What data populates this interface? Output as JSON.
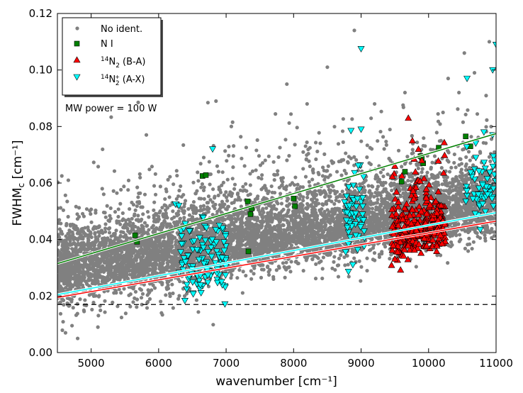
{
  "chart_data": {
    "type": "scatter",
    "xlabel": "wavenumber [cm⁻¹]",
    "ylabel": "FWHM",
    "ylabel_sub": "c",
    "ylabel_unit": " [cm⁻¹]",
    "xlim": [
      4500,
      11000
    ],
    "ylim": [
      0.0,
      0.12
    ],
    "xticks": [
      5000,
      6000,
      7000,
      8000,
      9000,
      10000,
      11000
    ],
    "yticks": [
      0.0,
      0.02,
      0.04,
      0.06,
      0.08,
      0.1,
      0.12
    ],
    "xtick_labels": [
      "5000",
      "6000",
      "7000",
      "8000",
      "9000",
      "10000",
      "11000"
    ],
    "ytick_labels": [
      "0.00",
      "0.02",
      "0.04",
      "0.06",
      "0.08",
      "0.10",
      "0.12"
    ],
    "grid": false,
    "legend_position": "top-left",
    "annotation": "MW power = 100 W",
    "legend": [
      {
        "key": "noident",
        "label": "No ident.",
        "marker": "circle",
        "color": "#808080"
      },
      {
        "key": "ni",
        "label": "N I",
        "marker": "square",
        "color": "#008000"
      },
      {
        "key": "n2ba",
        "label_pre": "14",
        "label_main": "N",
        "label_sub": "2",
        "label_post": " (B-A)",
        "marker": "triangle-up",
        "color": "#ff0000"
      },
      {
        "key": "n2plus",
        "label_pre": "14",
        "label_main": "N",
        "label_sub": "2",
        "label_sup": "+",
        "label_post": " (A-X)",
        "marker": "triangle-down",
        "color": "#00ffff"
      }
    ],
    "series": [
      {
        "key": "noident",
        "marker": "circle",
        "color": "#808080",
        "clusters": [
          {
            "x": [
              4500,
              11000
            ],
            "trend": [
              0.032,
              0.056
            ],
            "spread": 0.007,
            "n": 3800
          },
          {
            "x": [
              4500,
              11000
            ],
            "trend": [
              0.028,
              0.05
            ],
            "spread": 0.004,
            "n": 2600
          },
          {
            "x": [
              4500,
              11000
            ],
            "trend": [
              0.04,
              0.07
            ],
            "spread": 0.012,
            "n": 700
          },
          {
            "x": [
              4500,
              6500
            ],
            "trend": [
              0.018,
              0.026
            ],
            "spread": 0.004,
            "n": 120
          }
        ],
        "outliers": [
          {
            "x": 8500,
            "y": 0.101
          },
          {
            "x": 8900,
            "y": 0.114
          },
          {
            "x": 10680,
            "y": 0.099
          },
          {
            "x": 10530,
            "y": 0.106
          },
          {
            "x": 9650,
            "y": 0.092
          },
          {
            "x": 7900,
            "y": 0.095
          },
          {
            "x": 6850,
            "y": 0.089
          },
          {
            "x": 10290,
            "y": 0.097
          },
          {
            "x": 10900,
            "y": 0.11
          },
          {
            "x": 9200,
            "y": 0.088
          },
          {
            "x": 10450,
            "y": 0.092
          },
          {
            "x": 8200,
            "y": 0.088
          },
          {
            "x": 4800,
            "y": 0.005
          },
          {
            "x": 4620,
            "y": 0.007
          },
          {
            "x": 5100,
            "y": 0.009
          }
        ]
      },
      {
        "key": "ni",
        "marker": "square",
        "color": "#008000",
        "points": [
          [
            5650,
            0.0415
          ],
          [
            5680,
            0.0392
          ],
          [
            6650,
            0.0625
          ],
          [
            6700,
            0.0628
          ],
          [
            7320,
            0.0535
          ],
          [
            7360,
            0.049
          ],
          [
            7380,
            0.051
          ],
          [
            7330,
            0.0358
          ],
          [
            8000,
            0.0545
          ],
          [
            8020,
            0.0518
          ],
          [
            9600,
            0.0605
          ],
          [
            9650,
            0.064
          ],
          [
            9880,
            0.0695
          ],
          [
            9900,
            0.069
          ],
          [
            9920,
            0.067
          ],
          [
            10150,
            0.0725
          ],
          [
            10550,
            0.0765
          ],
          [
            10620,
            0.073
          ]
        ]
      },
      {
        "key": "n2ba",
        "marker": "triangle-up",
        "color": "#ff0000",
        "clusters": [
          {
            "x": [
              9450,
              10250
            ],
            "trend": [
              0.04,
              0.046
            ],
            "spread": 0.004,
            "n": 220
          },
          {
            "x": [
              9450,
              10250
            ],
            "trend": [
              0.048,
              0.056
            ],
            "spread": 0.008,
            "n": 90
          }
        ],
        "extra": [
          [
            9700,
            0.083
          ],
          [
            9760,
            0.075
          ],
          [
            9850,
            0.072
          ],
          [
            9500,
            0.066
          ],
          [
            9900,
            0.068
          ]
        ]
      },
      {
        "key": "n2plus",
        "marker": "triangle-down",
        "color": "#00ffff",
        "clusters": [
          {
            "x": [
              6300,
              7000
            ],
            "trend": [
              0.031,
              0.034
            ],
            "spread": 0.006,
            "n": 110
          },
          {
            "x": [
              8750,
              9050
            ],
            "trend": [
              0.046,
              0.048
            ],
            "spread": 0.008,
            "n": 55
          },
          {
            "x": [
              10550,
              11000
            ],
            "trend": [
              0.056,
              0.06
            ],
            "spread": 0.006,
            "n": 55
          }
        ],
        "extra": [
          [
            6250,
            0.0525
          ],
          [
            6300,
            0.052
          ],
          [
            6800,
            0.072
          ],
          [
            6420,
            0.024
          ],
          [
            6900,
            0.045
          ],
          [
            8850,
            0.0785
          ],
          [
            9000,
            0.079
          ],
          [
            9000,
            0.1075
          ],
          [
            10570,
            0.097
          ],
          [
            10950,
            0.1
          ],
          [
            11000,
            0.109
          ],
          [
            10820,
            0.078
          ],
          [
            10950,
            0.077
          ],
          [
            10700,
            0.069
          ],
          [
            10980,
            0.068
          ]
        ]
      }
    ],
    "fit_lines": [
      {
        "color": "#008000",
        "x": [
          4500,
          11000
        ],
        "y": [
          0.0315,
          0.0775
        ]
      },
      {
        "color": "#00ffff",
        "x": [
          4500,
          11000
        ],
        "y": [
          0.0205,
          0.0495
        ]
      },
      {
        "color": "#ff0000",
        "x": [
          4500,
          11000
        ],
        "y": [
          0.0195,
          0.0465
        ]
      }
    ],
    "reference_line": {
      "style": "dashed",
      "color": "#000000",
      "y": 0.017
    }
  }
}
